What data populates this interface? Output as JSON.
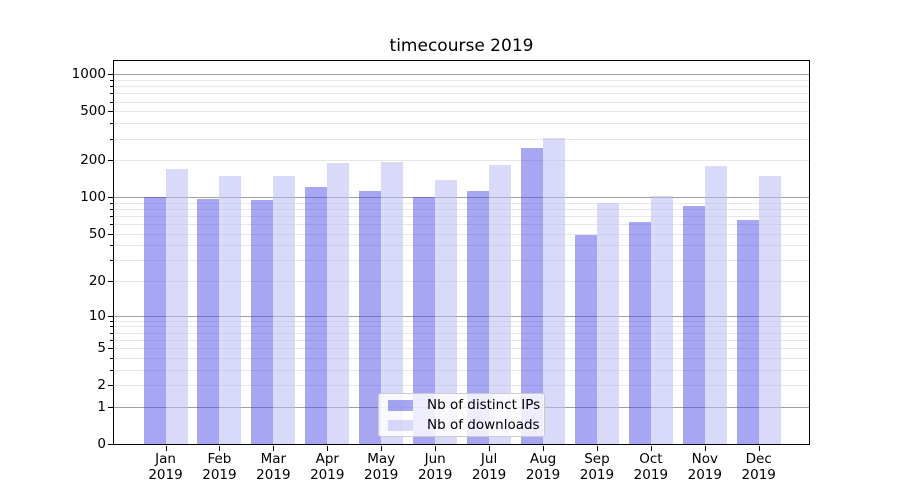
{
  "chart_data": {
    "type": "bar",
    "title": "timecourse 2019",
    "categories": [
      "Jan 2019",
      "Feb 2019",
      "Mar 2019",
      "Apr 2019",
      "May 2019",
      "Jun 2019",
      "Jul 2019",
      "Aug 2019",
      "Sep 2019",
      "Oct 2019",
      "Nov 2019",
      "Dec 2019"
    ],
    "series": [
      {
        "name": "Nb of distinct IPs",
        "color": "rgba(70,70,230,0.48)",
        "values": [
          100,
          97,
          94,
          120,
          113,
          100,
          112,
          250,
          49,
          62,
          85,
          65
        ]
      },
      {
        "name": "Nb of downloads",
        "color": "rgba(185,185,245,0.55)",
        "values": [
          170,
          150,
          148,
          190,
          195,
          138,
          183,
          305,
          89,
          103,
          178,
          149
        ]
      }
    ],
    "xlabel": "",
    "ylabel": "",
    "y_scale": "log10(value+1)",
    "ylim": [
      0,
      1285
    ],
    "y_ticks": [
      0,
      1,
      2,
      5,
      10,
      20,
      50,
      100,
      200,
      500,
      1000
    ],
    "y_tick_labels": [
      "0",
      "1",
      "2",
      "5",
      "10",
      "20",
      "50",
      "100",
      "200",
      "500",
      "1000"
    ],
    "grid": {
      "major_at": [
        1,
        10,
        100,
        1000
      ],
      "minor_pattern": "2-9 per decade",
      "grid_on": true
    },
    "legend_position": "lower center",
    "colors": {
      "background": "#ffffff",
      "spine": "#000000",
      "grid_major": "#9f9f9f",
      "grid_minor": "#e7e7e7",
      "legend_border": "#cbcbcb",
      "legend_background": "rgba(255,255,255,0.8)",
      "text": "#000000"
    }
  }
}
